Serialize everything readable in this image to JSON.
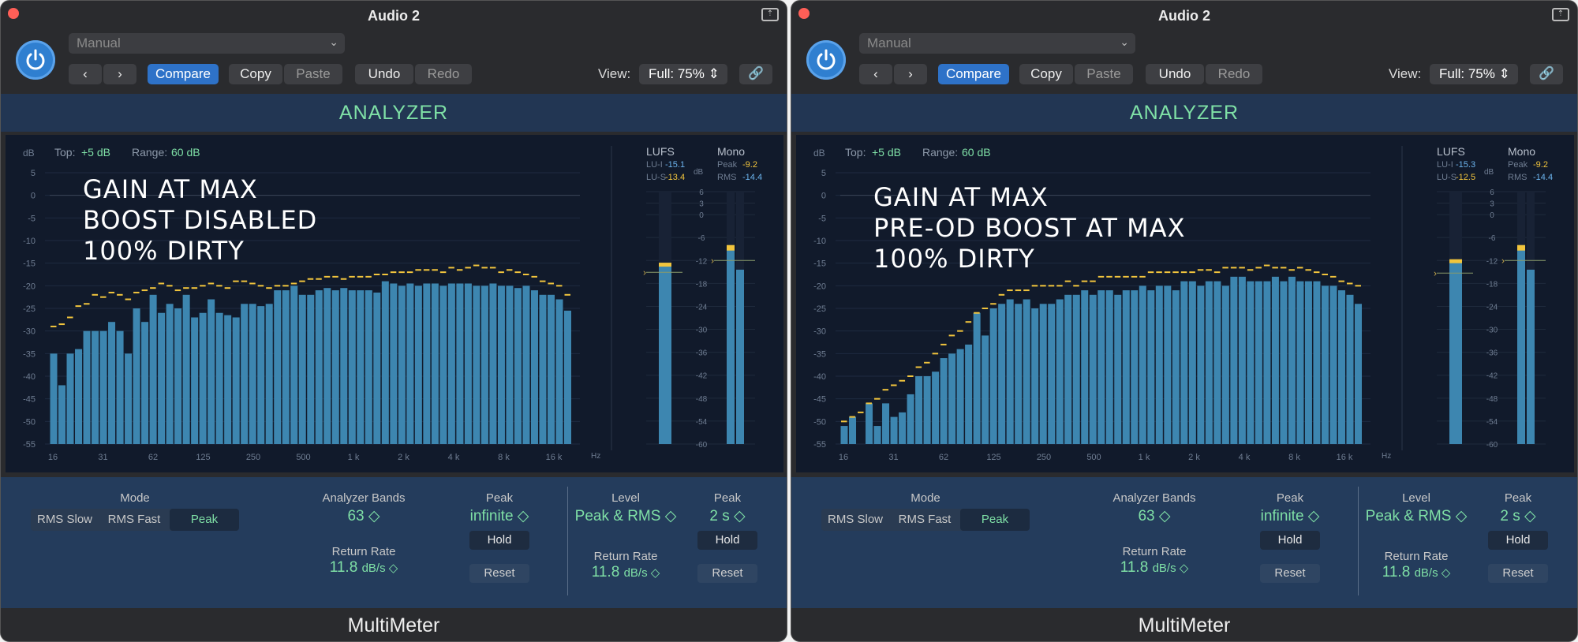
{
  "panels": [
    {
      "title": "Audio 2",
      "preset": "Manual",
      "toolbar": {
        "compare": "Compare",
        "copy": "Copy",
        "paste": "Paste",
        "undo": "Undo",
        "redo": "Redo",
        "view_label": "View:",
        "view_value": "Full: 75%"
      },
      "section": "ANALYZER",
      "analyzer": {
        "db_label": "dB",
        "top_label": "Top:",
        "top_value": "+5 dB",
        "range_label": "Range:",
        "range_value": "60 dB",
        "y_ticks": [
          "5",
          "0",
          "-5",
          "-10",
          "-15",
          "-20",
          "-25",
          "-30",
          "-35",
          "-40",
          "-45",
          "-50",
          "-55"
        ],
        "x_ticks": [
          "16",
          "31",
          "62",
          "125",
          "250",
          "500",
          "1 k",
          "2 k",
          "4 k",
          "8 k",
          "16 k"
        ],
        "hz_label": "Hz",
        "annotation": [
          "GAIN AT MAX",
          "BOOST DISABLED",
          "100% DIRTY"
        ]
      },
      "meters": {
        "lufs_label": "LUFS",
        "lui_label": "LU-I",
        "lui_value": "-15.1",
        "lus_label": "LU-S",
        "lus_value": "-13.4",
        "mono_label": "Mono",
        "peak_label": "Peak",
        "peak_value": "-9.2",
        "rms_label": "RMS",
        "rms_value": "-14.4",
        "db_label": "dB",
        "scale": [
          "6",
          "3",
          "0",
          "-6",
          "-12",
          "-18",
          "-24",
          "-30",
          "-36",
          "-42",
          "-48",
          "-54",
          "-60"
        ]
      },
      "controls": {
        "mode_label": "Mode",
        "modes": [
          "RMS Slow",
          "RMS Fast",
          "Peak"
        ],
        "mode_selected": "Peak",
        "bands_label": "Analyzer Bands",
        "bands_value": "63 ◇",
        "return_label": "Return Rate",
        "return_value": "11.8",
        "return_unit": "dB/s ◇",
        "peak_label": "Peak",
        "peak_value": "infinite ◇",
        "hold": "Hold",
        "reset": "Reset",
        "level_label": "Level",
        "level_value": "Peak & RMS ◇",
        "return2_label": "Return Rate",
        "return2_value": "11.8",
        "return2_unit": "dB/s ◇",
        "peak2_label": "Peak",
        "peak2_value": "2 s ◇",
        "hold2": "Hold",
        "reset2": "Reset"
      },
      "footer": "MultiMeter"
    },
    {
      "title": "Audio 2",
      "preset": "Manual",
      "toolbar": {
        "compare": "Compare",
        "copy": "Copy",
        "paste": "Paste",
        "undo": "Undo",
        "redo": "Redo",
        "view_label": "View:",
        "view_value": "Full: 75%"
      },
      "section": "ANALYZER",
      "analyzer": {
        "db_label": "dB",
        "top_label": "Top:",
        "top_value": "+5 dB",
        "range_label": "Range:",
        "range_value": "60 dB",
        "y_ticks": [
          "5",
          "0",
          "-5",
          "-10",
          "-15",
          "-20",
          "-25",
          "-30",
          "-35",
          "-40",
          "-45",
          "-50",
          "-55"
        ],
        "x_ticks": [
          "16",
          "31",
          "62",
          "125",
          "250",
          "500",
          "1 k",
          "2 k",
          "4 k",
          "8 k",
          "16 k"
        ],
        "hz_label": "Hz",
        "annotation": [
          "GAIN AT MAX",
          "PRE-OD BOOST AT MAX",
          "100% DIRTY"
        ]
      },
      "meters": {
        "lufs_label": "LUFS",
        "lui_label": "LU-I",
        "lui_value": "-15.3",
        "lus_label": "LU-S",
        "lus_value": "-12.5",
        "mono_label": "Mono",
        "peak_label": "Peak",
        "peak_value": "-9.2",
        "rms_label": "RMS",
        "rms_value": "-14.4",
        "db_label": "dB",
        "scale": [
          "6",
          "3",
          "0",
          "-6",
          "-12",
          "-18",
          "-24",
          "-30",
          "-36",
          "-42",
          "-48",
          "-54",
          "-60"
        ]
      },
      "controls": {
        "mode_label": "Mode",
        "modes": [
          "RMS Slow",
          "RMS Fast",
          "Peak"
        ],
        "mode_selected": "Peak",
        "bands_label": "Analyzer Bands",
        "bands_value": "63 ◇",
        "return_label": "Return Rate",
        "return_value": "11.8",
        "return_unit": "dB/s ◇",
        "peak_label": "Peak",
        "peak_value": "infinite ◇",
        "hold": "Hold",
        "reset": "Reset",
        "level_label": "Level",
        "level_value": "Peak & RMS ◇",
        "return2_label": "Return Rate",
        "return2_value": "11.8",
        "return2_unit": "dB/s ◇",
        "peak2_label": "Peak",
        "peak2_value": "2 s ◇",
        "hold2": "Hold",
        "reset2": "Reset"
      },
      "footer": "MultiMeter"
    }
  ],
  "colors": {
    "bar": "#3d86b0",
    "peak": "#f2c53d",
    "accent": "#7fe0a6",
    "lufs_value": "#6cb4ee",
    "lus_value": "#f2c53d"
  },
  "chart_data": [
    {
      "type": "bar",
      "title": "",
      "xlabel": "Hz",
      "ylabel": "dB",
      "ylim": [
        -55,
        5
      ],
      "x_ticks": [
        "16",
        "31",
        "62",
        "125",
        "250",
        "500",
        "1 k",
        "2 k",
        "4 k",
        "8 k",
        "16 k"
      ],
      "series": [
        {
          "values": [
            -35,
            -42,
            -35,
            -34,
            -30,
            -30,
            -30,
            -28,
            -30,
            -35,
            -25,
            -28,
            -22,
            -26,
            -24,
            -25,
            -22,
            -27,
            -26,
            -23,
            -26,
            -26.5,
            -27,
            -24,
            -24,
            -24.5,
            -24,
            -21,
            -21,
            -20,
            -22,
            -22,
            -21,
            -20.5,
            -21,
            -20.5,
            -21,
            -21,
            -21,
            -21.5,
            -19,
            -19.5,
            -20,
            -19.5,
            -20,
            -19.5,
            -19.5,
            -20,
            -19.5,
            -19.5,
            -19.5,
            -20,
            -20,
            -19.5,
            -20,
            -20,
            -20.5,
            -20,
            -21,
            -22,
            -22,
            -23,
            -25.5
          ]
        },
        {
          "values": [
            -29,
            -28.5,
            -27,
            -24.5,
            -24,
            -22,
            -22.5,
            -21.5,
            -22,
            -23,
            -21.5,
            -21,
            -20.5,
            -19.5,
            -20,
            -21,
            -20.5,
            -20.5,
            -20,
            -19.5,
            -20,
            -20.5,
            -19,
            -19,
            -19.5,
            -20,
            -20.5,
            -20,
            -20,
            -19.5,
            -19,
            -18.5,
            -18.5,
            -18,
            -18,
            -18.5,
            -18,
            -18,
            -18,
            -17.5,
            -17.5,
            -17,
            -17,
            -17,
            -16.5,
            -16.5,
            -16.5,
            -17,
            -16,
            -16.5,
            -16,
            -15.5,
            -16,
            -16,
            -17,
            -16.5,
            -17,
            -17.5,
            -18,
            -19,
            -19.5,
            -20,
            -22
          ]
        }
      ]
    },
    {
      "type": "bar",
      "title": "",
      "xlabel": "Hz",
      "ylabel": "dB",
      "ylim": [
        -55,
        5
      ],
      "x_ticks": [
        "16",
        "31",
        "62",
        "125",
        "250",
        "500",
        "1 k",
        "2 k",
        "4 k",
        "8 k",
        "16 k"
      ],
      "series": [
        {
          "values": [
            -51,
            -49,
            -55,
            -46,
            -51,
            -46,
            -49,
            -48,
            -44,
            -40,
            -40,
            -39,
            -36,
            -35,
            -34,
            -33,
            -26,
            -31,
            -25,
            -24,
            -23,
            -24,
            -23,
            -25,
            -24,
            -24,
            -23,
            -22,
            -22,
            -21,
            -22,
            -21,
            -21,
            -22,
            -21,
            -21,
            -20,
            -21,
            -20,
            -20,
            -21,
            -19,
            -19,
            -20,
            -19,
            -19,
            -20,
            -18,
            -18,
            -19,
            -19,
            -19,
            -18,
            -19,
            -18,
            -19,
            -19,
            -19,
            -20,
            -20,
            -21,
            -22,
            -24
          ]
        },
        {
          "values": [
            -50,
            -49,
            -48,
            -46,
            -45,
            -43,
            -42,
            -41,
            -40,
            -38,
            -37,
            -35,
            -33,
            -31,
            -30,
            -28,
            -26,
            -25,
            -24,
            -22,
            -21,
            -21,
            -21,
            -20,
            -20,
            -20,
            -20,
            -19,
            -20,
            -19,
            -19,
            -18,
            -18,
            -18,
            -18,
            -18,
            -18,
            -17,
            -17,
            -17,
            -17,
            -17,
            -17,
            -16.5,
            -16.5,
            -17,
            -16,
            -16,
            -16,
            -16.5,
            -16,
            -15.5,
            -16,
            -16,
            -16.5,
            -16,
            -16.5,
            -17,
            -17.5,
            -18,
            -19,
            -19.5,
            -20
          ]
        }
      ]
    }
  ]
}
